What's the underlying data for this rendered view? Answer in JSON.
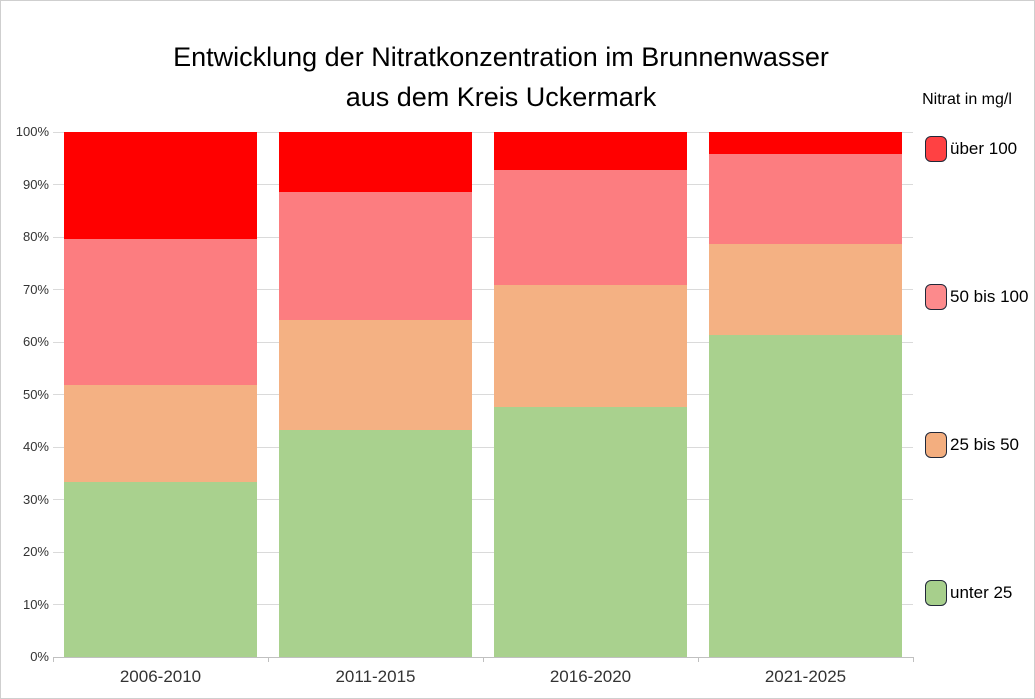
{
  "title": {
    "line1": "Entwicklung der Nitratkonzentration im Brunnenwasser",
    "line2": "aus dem Kreis Uckermark"
  },
  "legend": {
    "header": "Nitrat in mg/l",
    "items": [
      {
        "label": "über 100",
        "swatch_color": "#FF4143",
        "border_color": "#212838"
      },
      {
        "label": "50 bis 100",
        "swatch_color": "#FC8A8C",
        "border_color": "#212838"
      },
      {
        "label": "25 bis 50",
        "swatch_color": "#F3AE7F",
        "border_color": "#212838"
      },
      {
        "label": "unter 25",
        "swatch_color": "#A7CF8C",
        "border_color": "#212838"
      }
    ]
  },
  "chart_data": {
    "type": "bar",
    "stacked": true,
    "percent_stacked": true,
    "title": "Entwicklung der Nitratkonzentration im Brunnenwasser aus dem Kreis Uckermark",
    "legend_title": "Nitrat in mg/l",
    "legend_position": "right",
    "grid": true,
    "categories": [
      "2006-2010",
      "2011-2015",
      "2016-2020",
      "2021-2025"
    ],
    "series": [
      {
        "name": "unter 25",
        "color": "#A9D18E",
        "values": [
          33.3,
          43.2,
          47.6,
          61.3
        ]
      },
      {
        "name": "25 bis 50",
        "color": "#F4B183",
        "values": [
          18.5,
          20.9,
          23.3,
          17.4
        ]
      },
      {
        "name": "50 bis 100",
        "color": "#FC7D80",
        "values": [
          27.8,
          24.4,
          21.9,
          17.2
        ]
      },
      {
        "name": "über 100",
        "color": "#FF0000",
        "values": [
          20.4,
          11.5,
          7.2,
          4.1
        ]
      }
    ],
    "xlabel": "",
    "ylabel": "",
    "ylim": [
      0,
      100
    ],
    "y_ticks": [
      "0%",
      "10%",
      "20%",
      "30%",
      "40%",
      "50%",
      "60%",
      "70%",
      "80%",
      "90%",
      "100%"
    ],
    "gridline_color": "#dadada",
    "axis_color": "#c0c0c0"
  }
}
